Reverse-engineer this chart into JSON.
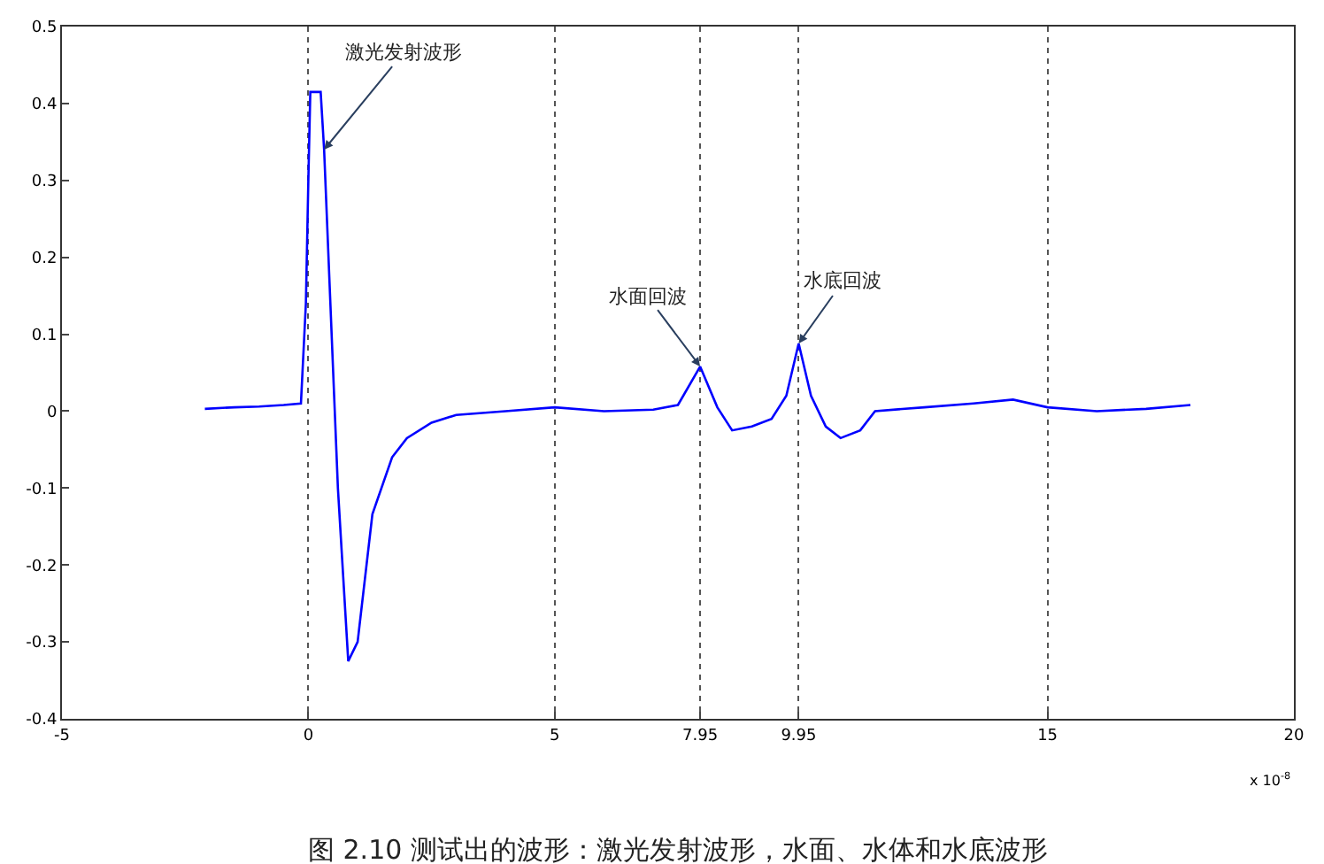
{
  "chart_data": {
    "type": "line",
    "x": [
      -2.1,
      -1.5,
      -1.0,
      -0.5,
      -0.15,
      -0.05,
      0.0,
      0.04,
      0.25,
      0.32,
      0.6,
      0.81,
      1.0,
      1.3,
      1.7,
      2.0,
      2.5,
      3.0,
      4.0,
      5.0,
      6.0,
      7.0,
      7.5,
      7.95,
      8.3,
      8.6,
      9.0,
      9.4,
      9.7,
      9.95,
      10.2,
      10.5,
      10.8,
      11.2,
      11.5,
      12.5,
      13.5,
      14.3,
      15.0,
      16.0,
      17.0,
      17.9
    ],
    "series": [
      {
        "color": "#0000ff",
        "values": [
          0.003,
          0.005,
          0.006,
          0.008,
          0.01,
          0.14,
          0.3,
          0.415,
          0.415,
          0.34,
          -0.1,
          -0.325,
          -0.3,
          -0.134,
          -0.06,
          -0.035,
          -0.015,
          -0.005,
          0.0,
          0.005,
          0.0,
          0.002,
          0.008,
          0.058,
          0.005,
          -0.025,
          -0.02,
          -0.01,
          0.02,
          0.088,
          0.02,
          -0.02,
          -0.035,
          -0.025,
          0.0,
          0.005,
          0.01,
          0.015,
          0.005,
          0.0,
          0.003,
          0.008
        ]
      }
    ],
    "xlim": [
      -5,
      20
    ],
    "xticks": [
      -5,
      0,
      5,
      7.95,
      9.95,
      15,
      20
    ],
    "ylim": [
      -0.4,
      0.5
    ],
    "yticks": [
      -0.4,
      -0.3,
      -0.2,
      -0.1,
      0,
      0.1,
      0.2,
      0.3,
      0.4,
      0.5
    ],
    "grid": "x",
    "marker": "none",
    "line_style": "solid",
    "annotations": [
      {
        "text": "激光发射波形",
        "x": 0.32,
        "y": 0.34
      },
      {
        "text": "水面回波",
        "x": 7.95,
        "y": 0.058
      },
      {
        "text": "水底回波",
        "x": 9.95,
        "y": 0.088
      },
      "x 10$^{-8}$",
      "图 2.10 测试出的波形：激光发射波形，水面、水体和水底波形"
    ]
  }
}
